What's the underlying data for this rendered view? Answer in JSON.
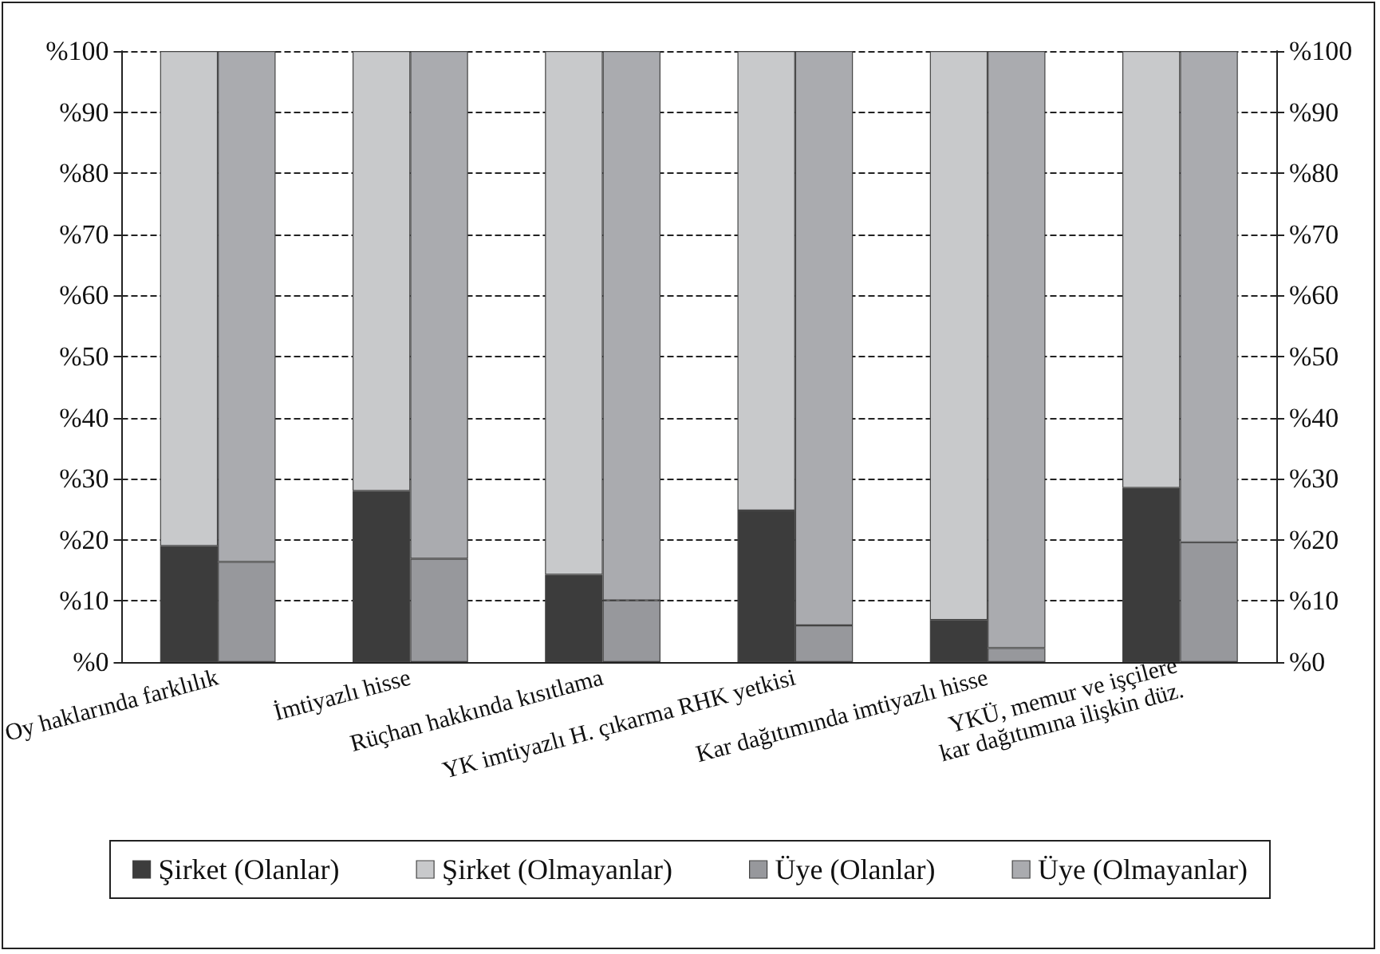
{
  "chart_data": {
    "type": "bar",
    "stacked": true,
    "categories": [
      "Oy haklarında farklılık",
      "İmtiyazlı hisse",
      "Rüçhan hakkında kısıtlama",
      "YK imtiyazlı H. çıkarma RHK yetkisi",
      "Kar dağıtımında imtiyazlı hisse",
      "YKÜ, memur ve işçilere\nkar dağıtımına ilişkin düz."
    ],
    "series": [
      {
        "name": "Şirket (Olanlar)",
        "color": "#3c3c3c",
        "values": [
          19,
          28,
          14.3,
          24.8,
          6.9,
          28.5
        ]
      },
      {
        "name": "Şirket (Olmayanlar)",
        "color": "#c8c9cb",
        "values": [
          81,
          72,
          85.7,
          75.2,
          93.1,
          71.5
        ]
      },
      {
        "name": "Üye (Olanlar)",
        "color": "#97989c",
        "axis": "y2",
        "values": [
          16.4,
          16.9,
          10.1,
          6,
          2.3,
          19.6
        ]
      },
      {
        "name": "Üye (Olmayanlar)",
        "color": "#aaabaf",
        "axis": "y2",
        "values": [
          83.6,
          83.1,
          89.9,
          94,
          97.7,
          80.4
        ]
      }
    ],
    "ylim": [
      0,
      100
    ],
    "yticks": [
      {
        "value": 0,
        "label": "%0"
      },
      {
        "value": 10,
        "label": "%10"
      },
      {
        "value": 20,
        "label": "%20"
      },
      {
        "value": 30,
        "label": "%30"
      },
      {
        "value": 40,
        "label": "%40"
      },
      {
        "value": 50,
        "label": "%50"
      },
      {
        "value": 60,
        "label": "%60"
      },
      {
        "value": 70,
        "label": "%70"
      },
      {
        "value": 80,
        "label": "%80"
      },
      {
        "value": 90,
        "label": "%90"
      },
      {
        "value": 100,
        "label": "%100"
      }
    ],
    "y2lim": [
      0,
      100
    ],
    "y2ticks": [
      {
        "value": 0,
        "label": "%0"
      },
      {
        "value": 10,
        "label": "%10"
      },
      {
        "value": 20,
        "label": "%20"
      },
      {
        "value": 30,
        "label": "%30"
      },
      {
        "value": 40,
        "label": "%40"
      },
      {
        "value": 50,
        "label": "%50"
      },
      {
        "value": 60,
        "label": "%60"
      },
      {
        "value": 70,
        "label": "%70"
      },
      {
        "value": 80,
        "label": "%80"
      },
      {
        "value": 90,
        "label": "%90"
      },
      {
        "value": 100,
        "label": "%100"
      }
    ],
    "grid": "y",
    "line_style": "dashed",
    "legend": "bottom"
  }
}
